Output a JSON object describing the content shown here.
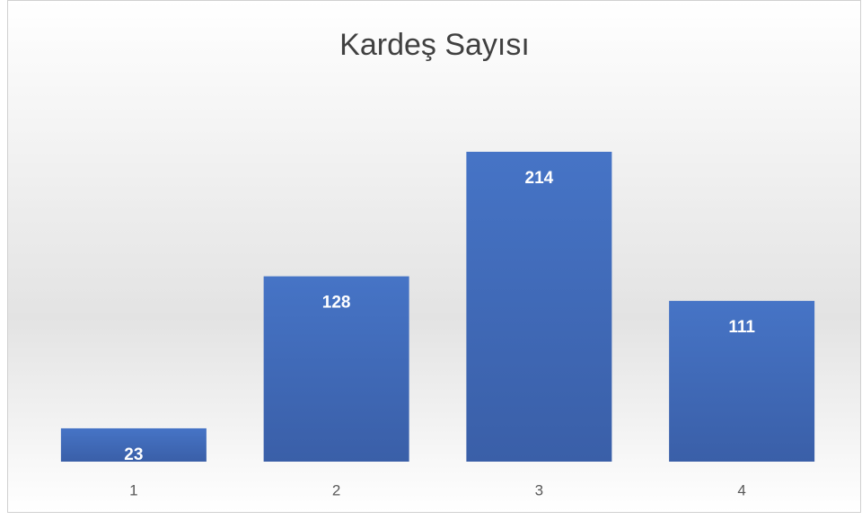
{
  "chart_data": {
    "type": "bar",
    "title": "Kardeş Sayısı",
    "categories": [
      "1",
      "2",
      "3",
      "4"
    ],
    "values": [
      23,
      128,
      214,
      111
    ],
    "color": "#4472c4"
  }
}
